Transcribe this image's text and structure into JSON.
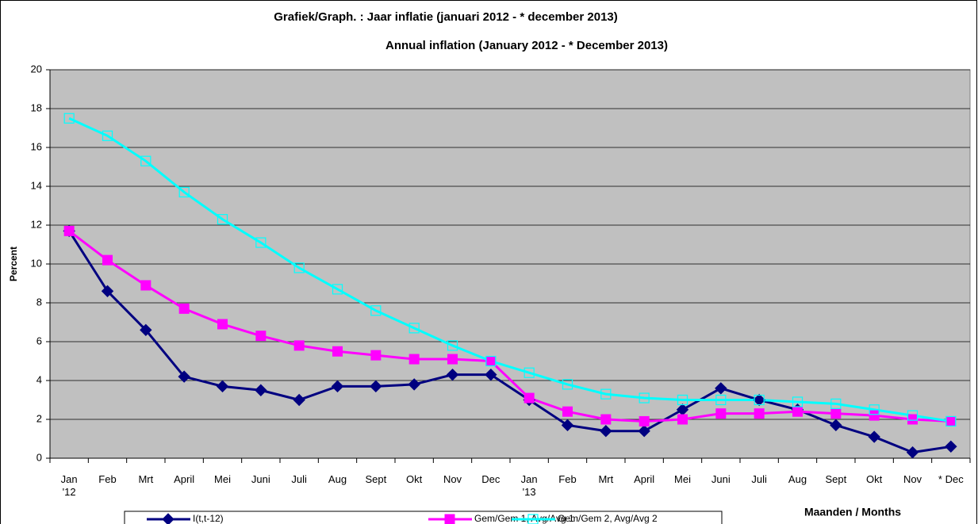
{
  "chart_data": {
    "type": "line",
    "title": "Grafiek/Graph. :  Jaar inflatie  (januari  2012 -  * december  2013)",
    "subtitle": "Annual inflation (January 2012 -  * December  2013)",
    "y_label": "Percent",
    "x_label": "Maanden / Months",
    "categories": [
      "Jan\n'12",
      "Feb",
      "Mrt",
      "April",
      "Mei",
      "Juni",
      "Juli",
      "Aug",
      "Sept",
      "Okt",
      "Nov",
      "Dec",
      "Jan\n'13",
      "Feb",
      "Mrt",
      "April",
      "Mei",
      "Juni",
      "Juli",
      "Aug",
      "Sept",
      "Okt",
      "Nov",
      "* Dec"
    ],
    "series": [
      {
        "name": "I(t,t-12)",
        "color": "#000080",
        "marker": "diamond",
        "values": [
          11.7,
          8.6,
          6.6,
          4.2,
          3.7,
          3.5,
          3.0,
          3.7,
          3.7,
          3.8,
          4.3,
          4.3,
          3.0,
          1.7,
          1.4,
          1.4,
          2.5,
          3.6,
          3.0,
          2.5,
          1.7,
          1.1,
          0.3,
          0.6
        ]
      },
      {
        "name": "Gem/Gem 1, Avg/Avg 1",
        "color": "#ff00ff",
        "marker": "square",
        "values": [
          11.7,
          10.2,
          8.9,
          7.7,
          6.9,
          6.3,
          5.8,
          5.5,
          5.3,
          5.1,
          5.1,
          5.0,
          3.1,
          2.4,
          2.0,
          1.9,
          2.0,
          2.3,
          2.3,
          2.4,
          2.3,
          2.2,
          2.0,
          1.9
        ]
      },
      {
        "name": "Gem/Gem 2, Avg/Avg 2",
        "color": "#00ffff",
        "marker": "hollow-square",
        "values": [
          17.5,
          16.6,
          15.3,
          13.7,
          12.3,
          11.1,
          9.8,
          8.7,
          7.6,
          6.7,
          5.8,
          5.0,
          4.4,
          3.8,
          3.3,
          3.1,
          3.0,
          3.0,
          3.0,
          2.9,
          2.8,
          2.5,
          2.2,
          1.9
        ]
      }
    ],
    "ylim": [
      0,
      20
    ],
    "yticks": [
      0,
      2,
      4,
      6,
      8,
      10,
      12,
      14,
      16,
      18,
      20
    ],
    "grid": true,
    "plot_background": "#c0c0c0"
  }
}
